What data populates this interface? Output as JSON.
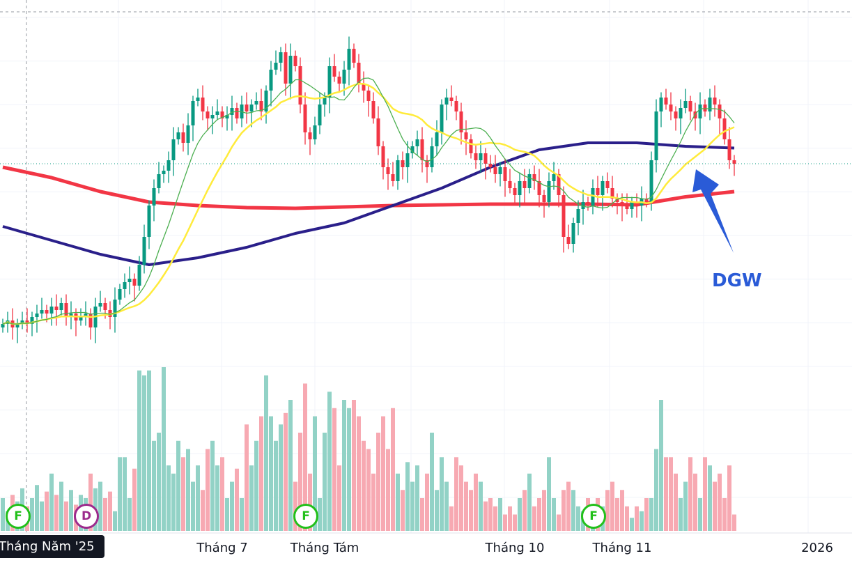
{
  "chart_data": {
    "type": "candlestick",
    "symbol": "DGW",
    "price_units": "relative (no price axis shown)",
    "closes": [
      11,
      12,
      10,
      11,
      12,
      11,
      13,
      14,
      15,
      14,
      16,
      15,
      17,
      13,
      14,
      12,
      13,
      14,
      10,
      16,
      17,
      15,
      13,
      18,
      21,
      23,
      24,
      22,
      28,
      36,
      45,
      50,
      54,
      55,
      58,
      64,
      66,
      63,
      68,
      75,
      76,
      72,
      70,
      71,
      72,
      70,
      71,
      73,
      70,
      74,
      72,
      74,
      75,
      72,
      78,
      84,
      86,
      89,
      80,
      88,
      85,
      74,
      66,
      64,
      68,
      74,
      76,
      85,
      82,
      80,
      84,
      90,
      86,
      80,
      78,
      75,
      70,
      62,
      56,
      54,
      52,
      58,
      56,
      60,
      62,
      64,
      58,
      56,
      62,
      66,
      74,
      76,
      75,
      72,
      66,
      64,
      60,
      58,
      60,
      57,
      56,
      54,
      56,
      52,
      50,
      48,
      52,
      50,
      54,
      52,
      48,
      46,
      52,
      54,
      48,
      36,
      34,
      40,
      44,
      46,
      45,
      50,
      48,
      52,
      50,
      47,
      46,
      45,
      44,
      46,
      45,
      47,
      46,
      58,
      72,
      76,
      74,
      72,
      70,
      73,
      75,
      72,
      70,
      74,
      72,
      76,
      74,
      70,
      64,
      58,
      57
    ],
    "volumes": [
      20,
      12,
      22,
      18,
      26,
      15,
      20,
      28,
      18,
      24,
      35,
      22,
      30,
      18,
      25,
      16,
      22,
      20,
      35,
      26,
      30,
      20,
      24,
      12,
      45,
      45,
      20,
      38,
      98,
      95,
      98,
      55,
      60,
      100,
      40,
      35,
      55,
      45,
      50,
      30,
      40,
      25,
      50,
      55,
      40,
      45,
      20,
      30,
      38,
      20,
      65,
      40,
      55,
      70,
      95,
      70,
      55,
      65,
      72,
      80,
      30,
      60,
      90,
      35,
      70,
      20,
      60,
      85,
      75,
      40,
      80,
      75,
      80,
      70,
      55,
      50,
      35,
      60,
      70,
      50,
      75,
      35,
      25,
      42,
      30,
      40,
      20,
      35,
      60,
      25,
      45,
      30,
      15,
      45,
      40,
      30,
      25,
      35,
      30,
      18,
      20,
      15,
      20,
      10,
      15,
      10,
      20,
      25,
      35,
      15,
      20,
      25,
      45,
      20,
      10,
      25,
      30,
      25,
      15,
      12,
      20,
      15,
      20,
      15,
      25,
      30,
      20,
      25,
      15,
      8,
      15,
      12,
      20,
      20,
      50,
      80,
      45,
      45,
      35,
      20,
      30,
      45,
      35,
      20,
      45,
      40,
      30,
      35,
      20,
      40,
      10
    ],
    "moving_averages": [
      {
        "name": "MA-short",
        "color": "#4caf50",
        "period": 10
      },
      {
        "name": "MA-medium",
        "color": "#ffeb3b",
        "period": 20
      },
      {
        "name": "MA-long",
        "color": "#2a1f8a",
        "sampled_every": 10,
        "values": [
          39,
          35,
          31,
          28,
          30,
          33,
          37,
          40,
          45,
          50,
          56,
          61,
          63,
          63,
          62,
          61.5
        ]
      },
      {
        "name": "MA-longest",
        "color": "#f23645",
        "sampled_every": 10,
        "values": [
          56,
          53,
          49,
          46,
          45,
          44.4,
          44.2,
          44.6,
          45,
          45.2,
          45.4,
          45.4,
          45.4,
          45.2,
          47.5,
          49
        ]
      }
    ],
    "last_price": 57,
    "x_tick_labels": [
      {
        "label": "Tháng Năm '25",
        "candle": 0,
        "active": true
      },
      {
        "label": "Tháng 7",
        "candle": 43
      },
      {
        "label": "Tháng Tám",
        "candle": 64
      },
      {
        "label": "Tháng 10",
        "candle": 103
      },
      {
        "label": "Tháng 11",
        "candle": 125
      },
      {
        "label": "2026",
        "candle": 165
      }
    ],
    "event_markers": [
      {
        "label": "F",
        "candle": 3,
        "type": "financials"
      },
      {
        "label": "D",
        "candle": 17,
        "type": "dividend"
      },
      {
        "label": "F",
        "candle": 62,
        "type": "financials"
      },
      {
        "label": "F",
        "candle": 121,
        "type": "financials"
      }
    ],
    "annotation": {
      "text": "DGW",
      "color": "#2a5bd7"
    },
    "colors": {
      "up": "#089981",
      "down": "#f23645",
      "vol_up": "#92d2c6",
      "vol_down": "#f7a9b2"
    }
  }
}
